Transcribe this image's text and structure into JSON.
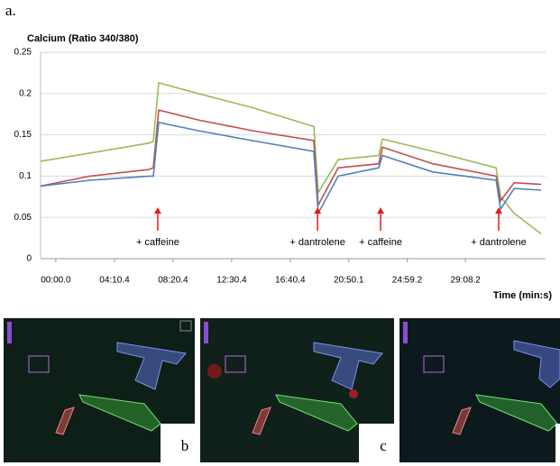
{
  "panel_labels": {
    "a": "a.",
    "b": "b",
    "c": "c"
  },
  "chart_data": {
    "type": "line",
    "title": "Calcium (Ratio 340/380)",
    "x_label": "Time (min:s)",
    "x": [
      -65,
      146,
      397,
      416,
      439,
      608,
      839,
      1101,
      1120,
      1205,
      1378,
      1394,
      1609,
      1879,
      1898,
      1956,
      2071
    ],
    "series": [
      {
        "color": "#9bbb59",
        "values": [
          0.118,
          0.128,
          0.14,
          0.142,
          0.213,
          0.2,
          0.183,
          0.16,
          0.08,
          0.12,
          0.125,
          0.145,
          0.13,
          0.11,
          0.075,
          0.055,
          0.03
        ]
      },
      {
        "color": "#c0504d",
        "values": [
          0.088,
          0.1,
          0.108,
          0.11,
          0.18,
          0.168,
          0.155,
          0.143,
          0.065,
          0.11,
          0.115,
          0.135,
          0.115,
          0.1,
          0.07,
          0.092,
          0.09
        ]
      },
      {
        "color": "#4f81bd",
        "values": [
          0.088,
          0.095,
          0.1,
          0.1,
          0.165,
          0.155,
          0.143,
          0.13,
          0.055,
          0.1,
          0.11,
          0.125,
          0.105,
          0.095,
          0.06,
          0.085,
          0.083
        ]
      }
    ],
    "xlim": [
      -65,
      2090
    ],
    "xticks": [
      {
        "value": 0,
        "label": "00:00.0"
      },
      {
        "value": 250.4,
        "label": "04:10.4"
      },
      {
        "value": 500.4,
        "label": "08:20.4"
      },
      {
        "value": 750.4,
        "label": "12:30.4"
      },
      {
        "value": 1000.4,
        "label": "16:40.4"
      },
      {
        "value": 1250.1,
        "label": "20:50.1"
      },
      {
        "value": 1499.2,
        "label": "24:59.2"
      },
      {
        "value": 1748.2,
        "label": "29:08.2"
      }
    ],
    "ylim": [
      0,
      0.25
    ],
    "yticks": [
      0,
      0.05,
      0.1,
      0.15,
      0.2,
      0.25
    ],
    "grid": true,
    "annotations": [
      {
        "text": "+ caffeine",
        "x": 435
      },
      {
        "text": "+ dantrolene",
        "x": 1117
      },
      {
        "text": "+ caffeine",
        "x": 1386
      },
      {
        "text": "+ dantrolene",
        "x": 1890
      }
    ],
    "annotation_color": "#e02020"
  }
}
